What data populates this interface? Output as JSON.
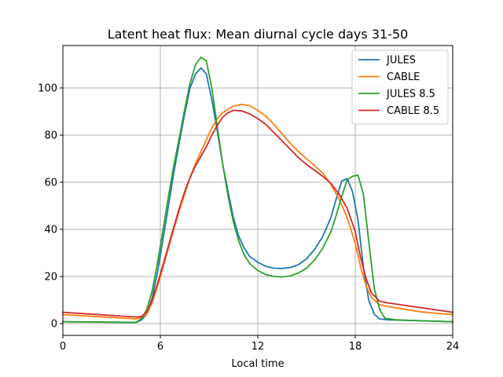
{
  "chart_data": {
    "type": "line",
    "title": "Latent heat flux: Mean diurnal cycle days 31-50",
    "xlabel": "Local time",
    "ylabel": "",
    "xlim": [
      0,
      24
    ],
    "ylim": [
      -5,
      118
    ],
    "xticks": [
      0,
      6,
      12,
      18,
      24
    ],
    "yticks": [
      0,
      20,
      40,
      60,
      80,
      100
    ],
    "grid": true,
    "legend_position": "top-right",
    "series": [
      {
        "name": "JULES",
        "color": "#1f77b4",
        "points": [
          [
            0,
            0.8
          ],
          [
            4.5,
            0.5
          ],
          [
            4.83,
            1.5
          ],
          [
            5.17,
            4
          ],
          [
            5.5,
            11
          ],
          [
            5.83,
            22
          ],
          [
            6.17,
            36
          ],
          [
            6.5,
            50
          ],
          [
            6.83,
            64
          ],
          [
            7.17,
            77
          ],
          [
            7.5,
            89
          ],
          [
            7.83,
            100
          ],
          [
            8.17,
            106
          ],
          [
            8.5,
            108.5
          ],
          [
            8.83,
            106
          ],
          [
            9.17,
            95
          ],
          [
            9.5,
            82
          ],
          [
            9.83,
            68
          ],
          [
            10.17,
            56
          ],
          [
            10.5,
            45
          ],
          [
            10.83,
            37
          ],
          [
            11.17,
            32
          ],
          [
            11.5,
            28.5
          ],
          [
            12,
            26
          ],
          [
            12.5,
            24.3
          ],
          [
            13,
            23.5
          ],
          [
            13.5,
            23.4
          ],
          [
            14,
            23.8
          ],
          [
            14.5,
            25
          ],
          [
            15,
            27.5
          ],
          [
            15.5,
            31.5
          ],
          [
            16,
            37
          ],
          [
            16.5,
            45
          ],
          [
            16.83,
            53
          ],
          [
            17.17,
            60.5
          ],
          [
            17.5,
            61.5
          ],
          [
            17.83,
            56
          ],
          [
            18.17,
            44
          ],
          [
            18.5,
            24
          ],
          [
            18.83,
            10
          ],
          [
            19.17,
            4
          ],
          [
            19.5,
            2
          ],
          [
            20,
            1.6
          ],
          [
            22,
            1.2
          ],
          [
            24,
            0.8
          ]
        ]
      },
      {
        "name": "CABLE",
        "color": "#ff7f0e",
        "points": [
          [
            0,
            3.8
          ],
          [
            4.5,
            2
          ],
          [
            4.83,
            2.5
          ],
          [
            5.17,
            4
          ],
          [
            5.5,
            9
          ],
          [
            5.83,
            16
          ],
          [
            6.17,
            24
          ],
          [
            6.5,
            32
          ],
          [
            6.83,
            40
          ],
          [
            7.17,
            48
          ],
          [
            7.5,
            55
          ],
          [
            7.83,
            62
          ],
          [
            8.17,
            68
          ],
          [
            8.5,
            73
          ],
          [
            8.83,
            78
          ],
          [
            9.17,
            83
          ],
          [
            9.5,
            87
          ],
          [
            9.83,
            89.5
          ],
          [
            10.17,
            91
          ],
          [
            10.5,
            92.3
          ],
          [
            11,
            93
          ],
          [
            11.5,
            92.5
          ],
          [
            12,
            90.5
          ],
          [
            12.5,
            88
          ],
          [
            13,
            84.5
          ],
          [
            13.5,
            80.5
          ],
          [
            14,
            76.5
          ],
          [
            14.5,
            73
          ],
          [
            15,
            70
          ],
          [
            15.5,
            67
          ],
          [
            16,
            64
          ],
          [
            16.5,
            59
          ],
          [
            17,
            53
          ],
          [
            17.5,
            45
          ],
          [
            18,
            34
          ],
          [
            18.33,
            24
          ],
          [
            18.67,
            16
          ],
          [
            19,
            11
          ],
          [
            19.5,
            8
          ],
          [
            20,
            7.3
          ],
          [
            22,
            5
          ],
          [
            24,
            3.8
          ]
        ]
      },
      {
        "name": "JULES 8.5",
        "color": "#2ca02c",
        "points": [
          [
            0,
            0.8
          ],
          [
            4.5,
            0.5
          ],
          [
            4.83,
            2
          ],
          [
            5.17,
            6
          ],
          [
            5.5,
            14
          ],
          [
            5.83,
            26
          ],
          [
            6.17,
            40
          ],
          [
            6.5,
            54
          ],
          [
            6.83,
            67
          ],
          [
            7.17,
            79
          ],
          [
            7.5,
            91
          ],
          [
            7.83,
            102
          ],
          [
            8.17,
            110
          ],
          [
            8.5,
            113
          ],
          [
            8.83,
            111.5
          ],
          [
            9.17,
            100
          ],
          [
            9.5,
            84
          ],
          [
            9.83,
            68
          ],
          [
            10.17,
            54
          ],
          [
            10.5,
            43
          ],
          [
            10.83,
            35
          ],
          [
            11.17,
            29
          ],
          [
            11.5,
            25.5
          ],
          [
            12,
            22.5
          ],
          [
            12.5,
            20.8
          ],
          [
            13,
            20
          ],
          [
            13.5,
            19.8
          ],
          [
            14,
            20.2
          ],
          [
            14.5,
            21.5
          ],
          [
            15,
            23.5
          ],
          [
            15.5,
            27
          ],
          [
            16,
            32
          ],
          [
            16.5,
            39
          ],
          [
            16.83,
            46
          ],
          [
            17.17,
            54
          ],
          [
            17.5,
            61
          ],
          [
            17.83,
            62.5
          ],
          [
            18.17,
            63
          ],
          [
            18.5,
            55
          ],
          [
            18.83,
            35
          ],
          [
            19.17,
            15
          ],
          [
            19.5,
            6
          ],
          [
            19.83,
            2.2
          ],
          [
            20.5,
            1.6
          ],
          [
            22,
            1.2
          ],
          [
            24,
            0.8
          ]
        ]
      },
      {
        "name": "CABLE 8.5",
        "color": "#d62728",
        "points": [
          [
            0,
            4.8
          ],
          [
            4.5,
            2.8
          ],
          [
            4.83,
            3
          ],
          [
            5.17,
            5
          ],
          [
            5.5,
            10
          ],
          [
            5.83,
            17
          ],
          [
            6.17,
            25
          ],
          [
            6.5,
            33
          ],
          [
            6.83,
            41
          ],
          [
            7.17,
            49
          ],
          [
            7.5,
            56
          ],
          [
            7.83,
            62
          ],
          [
            8.17,
            67
          ],
          [
            8.5,
            71
          ],
          [
            8.83,
            75
          ],
          [
            9.17,
            80
          ],
          [
            9.5,
            84
          ],
          [
            9.83,
            87.5
          ],
          [
            10.17,
            89.5
          ],
          [
            10.5,
            90.5
          ],
          [
            11,
            90.3
          ],
          [
            11.5,
            89
          ],
          [
            12,
            87
          ],
          [
            12.5,
            84.5
          ],
          [
            13,
            81
          ],
          [
            13.5,
            77.5
          ],
          [
            14,
            74
          ],
          [
            14.5,
            70.5
          ],
          [
            15,
            67.5
          ],
          [
            15.5,
            65
          ],
          [
            16,
            62.5
          ],
          [
            16.5,
            59.5
          ],
          [
            17,
            55
          ],
          [
            17.5,
            49
          ],
          [
            18,
            39
          ],
          [
            18.33,
            28
          ],
          [
            18.67,
            19
          ],
          [
            19,
            13
          ],
          [
            19.5,
            9.5
          ],
          [
            20,
            8.8
          ],
          [
            22,
            6.8
          ],
          [
            24,
            4.8
          ]
        ]
      }
    ]
  }
}
